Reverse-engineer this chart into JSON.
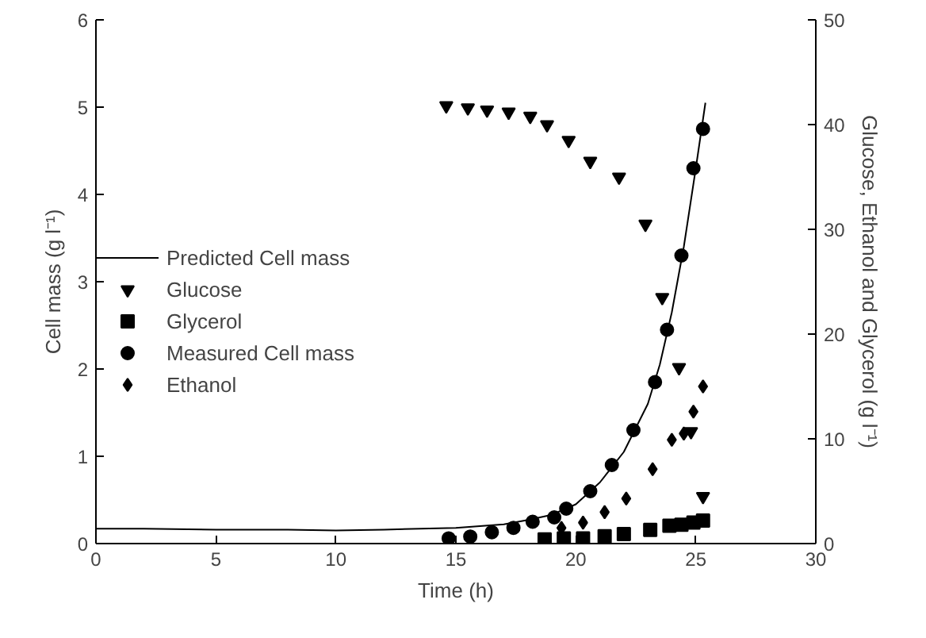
{
  "chart_data": {
    "type": "scatter",
    "xlabel": "Time (h)",
    "ylabel": "Cell mass (g l⁻¹)",
    "y2label": "Glucose, Ethanol and Glycerol (g l⁻¹)",
    "xlim": [
      0,
      30
    ],
    "xticks": [
      0,
      5,
      10,
      15,
      20,
      25,
      30
    ],
    "ylim": [
      0,
      6
    ],
    "yticks": [
      0,
      1,
      2,
      3,
      4,
      5,
      6
    ],
    "y2lim": [
      0,
      50
    ],
    "y2ticks": [
      0,
      10,
      20,
      30,
      40,
      50
    ],
    "grid": false,
    "legend": "left",
    "series": [
      {
        "name": "Predicted Cell mass",
        "type": "line",
        "color": "#000000",
        "line_style": "solid",
        "x": [
          0,
          2,
          5,
          8,
          10,
          12,
          15,
          17,
          18,
          19,
          20,
          21,
          22,
          23,
          23.5,
          24,
          24.5,
          25,
          25.4
        ],
        "values": [
          0.17,
          0.17,
          0.16,
          0.16,
          0.15,
          0.16,
          0.18,
          0.22,
          0.27,
          0.33,
          0.45,
          0.7,
          1.05,
          1.6,
          2.05,
          2.65,
          3.4,
          4.3,
          5.05
        ]
      },
      {
        "name": "Glucose",
        "marker": "triangle",
        "axis": "y2",
        "color": "#000000",
        "x": [
          14.6,
          15.5,
          16.3,
          17.2,
          18.1,
          18.8,
          19.7,
          20.6,
          21.8,
          22.9,
          23.6,
          24.3,
          24.8,
          25.3
        ],
        "values": [
          41.8,
          41.6,
          41.4,
          41.2,
          40.8,
          40.0,
          38.5,
          36.5,
          35.0,
          30.5,
          23.5,
          16.8,
          10.7,
          4.5
        ]
      },
      {
        "name": "Glycerol",
        "marker": "square",
        "axis": "y2",
        "color": "#000000",
        "x": [
          18.7,
          19.5,
          20.3,
          21.2,
          22.0,
          23.1,
          23.9,
          24.4,
          24.9,
          25.3
        ],
        "values": [
          0.4,
          0.5,
          0.5,
          0.7,
          0.9,
          1.3,
          1.7,
          1.8,
          2.0,
          2.2
        ]
      },
      {
        "name": "Measured Cell mass",
        "marker": "circle",
        "color": "#000000",
        "x": [
          14.7,
          15.6,
          16.5,
          17.4,
          18.2,
          19.1,
          19.6,
          20.6,
          21.5,
          22.4,
          23.3,
          23.8,
          24.4,
          24.9,
          25.3
        ],
        "values": [
          0.06,
          0.08,
          0.13,
          0.18,
          0.25,
          0.3,
          0.4,
          0.6,
          0.9,
          1.3,
          1.85,
          2.45,
          3.3,
          4.3,
          4.75
        ]
      },
      {
        "name": "Ethanol",
        "marker": "diamond",
        "axis": "y2",
        "color": "#000000",
        "x": [
          19.4,
          20.3,
          21.2,
          22.1,
          23.2,
          24.0,
          24.5,
          24.9,
          25.3
        ],
        "values": [
          1.5,
          2.0,
          3.0,
          4.3,
          7.1,
          9.9,
          10.5,
          12.6,
          15.0
        ]
      }
    ]
  }
}
